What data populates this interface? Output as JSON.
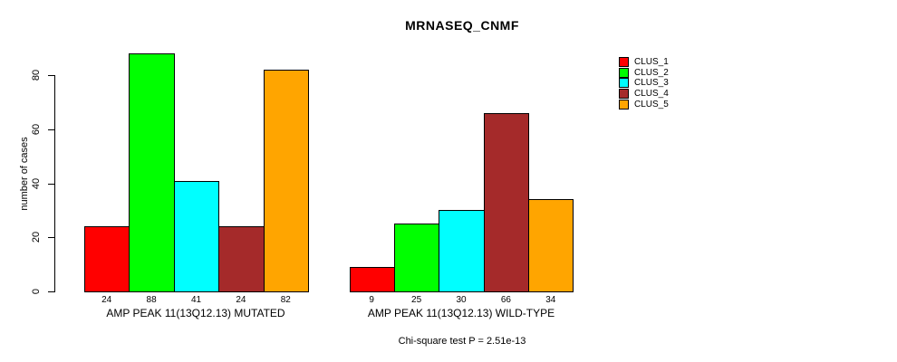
{
  "chart_data": {
    "type": "bar",
    "title": "MRNASEQ_CNMF",
    "ylabel": "number of cases",
    "xlabel": "",
    "ylim": [
      0,
      88
    ],
    "yticks": [
      0,
      20,
      40,
      60,
      80
    ],
    "grid": false,
    "legend_position": "right",
    "series": [
      "CLUS_1",
      "CLUS_2",
      "CLUS_3",
      "CLUS_4",
      "CLUS_5"
    ],
    "colors": [
      "#FF0000",
      "#00FF00",
      "#00FFFF",
      "#A52A2A",
      "#FFA500"
    ],
    "groups": [
      {
        "label": "AMP PEAK 11(13Q12.13) MUTATED",
        "values": [
          24,
          88,
          41,
          24,
          82
        ]
      },
      {
        "label": "AMP PEAK 11(13Q12.13) WILD-TYPE",
        "values": [
          9,
          25,
          30,
          66,
          34
        ]
      }
    ],
    "annotation": "Chi-square test P = 2.51e-13"
  }
}
